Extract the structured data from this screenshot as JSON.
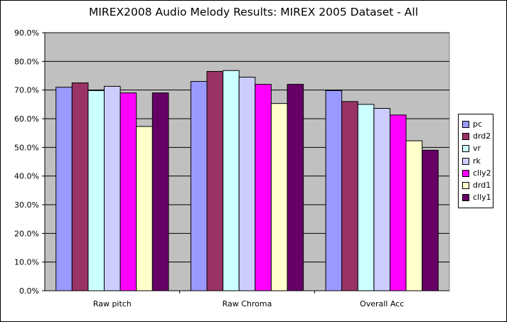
{
  "chart_data": {
    "type": "bar",
    "title": "MIREX2008 Audio Melody Results: MIREX 2005 Dataset - All",
    "categories": [
      "Raw pitch",
      "Raw Chroma",
      "Overall Acc"
    ],
    "ylim": [
      0,
      0.9
    ],
    "ytick_labels": [
      "0.0%",
      "10.0%",
      "20.0%",
      "30.0%",
      "40.0%",
      "50.0%",
      "60.0%",
      "70.0%",
      "80.0%",
      "90.0%"
    ],
    "grid": true,
    "legend_position": "right",
    "plot_background": "#c0c0c0",
    "series": [
      {
        "name": "pc",
        "color": "#9999ff",
        "values": [
          0.71,
          0.73,
          0.698
        ]
      },
      {
        "name": "drd2",
        "color": "#993366",
        "values": [
          0.725,
          0.765,
          0.66
        ]
      },
      {
        "name": "vr",
        "color": "#ccffff",
        "values": [
          0.698,
          0.768,
          0.65
        ]
      },
      {
        "name": "rk",
        "color": "#ccccff",
        "values": [
          0.713,
          0.745,
          0.636
        ]
      },
      {
        "name": "clly2",
        "color": "#ff00ff",
        "values": [
          0.69,
          0.72,
          0.613
        ]
      },
      {
        "name": "drd1",
        "color": "#ffffcc",
        "values": [
          0.573,
          0.653,
          0.523
        ]
      },
      {
        "name": "clly1",
        "color": "#660066",
        "values": [
          0.69,
          0.72,
          0.49
        ]
      }
    ]
  }
}
